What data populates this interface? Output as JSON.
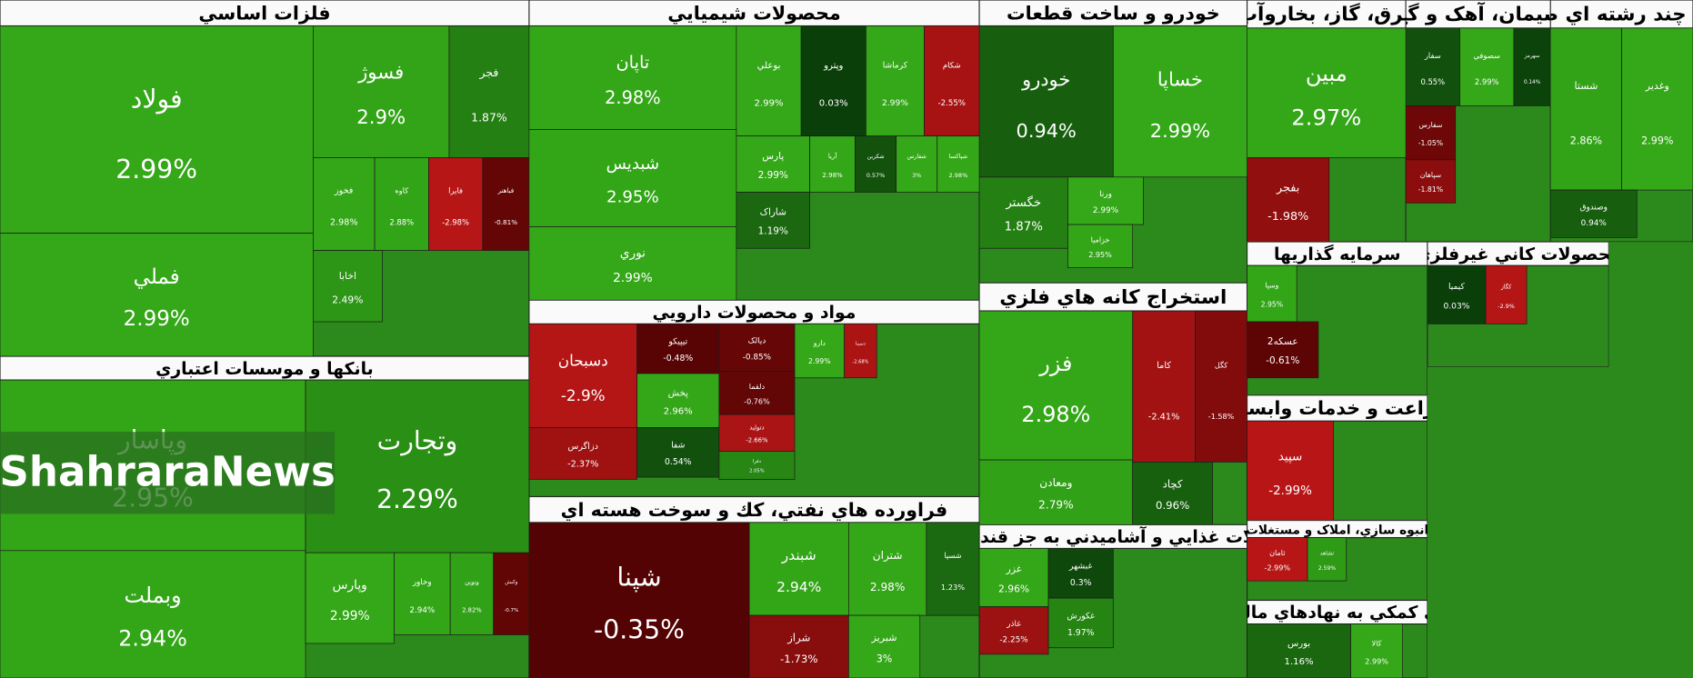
{
  "chart_data": {
    "type": "treemap",
    "watermark": "ShahraraNews",
    "groups": [
      {
        "name": "فلزات اساسي",
        "labels": [
          "فولاد",
          "فملي",
          "فسوژ",
          "فجر",
          "فخوز",
          "کاوه",
          "فايرا",
          "فباهنر",
          "اخابا"
        ],
        "values": [
          2.99,
          2.99,
          2.9,
          1.87,
          2.98,
          2.88,
          -2.98,
          -0.81,
          2.49
        ],
        "value_labels": [
          "2.99%",
          "2.99%",
          "2.9%",
          "1.87%",
          "2.98%",
          "2.88%",
          "-2.98%",
          "-0.81%",
          "2.49%"
        ]
      },
      {
        "name": "بانکها و موسسات اعتباري",
        "labels": [
          "وپاسار",
          "وبملت",
          "وتجارت",
          "وپارس",
          "وخاور",
          "ونوين",
          "وکبش"
        ],
        "values": [
          2.95,
          2.94,
          2.29,
          2.99,
          2.94,
          2.82,
          -0.7
        ],
        "value_labels": [
          "2.95%",
          "2.94%",
          "2.29%",
          "2.99%",
          "2.94%",
          "2.82%",
          "-0.7%"
        ]
      },
      {
        "name": "محصولات شيميايي",
        "labels": [
          "تاپان",
          "شبديس",
          "نوري",
          "بوعلي",
          "وپترو",
          "کرماشا",
          "شکام",
          "پارس",
          "آريا",
          "شکربن",
          "شفارس",
          "شپاکسا",
          "شاراک"
        ],
        "values": [
          2.98,
          2.95,
          2.99,
          2.99,
          0.03,
          2.99,
          -2.55,
          2.99,
          2.98,
          0.57,
          3,
          2.98,
          1.19
        ],
        "value_labels": [
          "2.98%",
          "2.95%",
          "2.99%",
          "2.99%",
          "0.03%",
          "2.99%",
          "-2.55%",
          "2.99%",
          "2.98%",
          "0.57%",
          "3%",
          "2.98%",
          "1.19%"
        ]
      },
      {
        "name": "مواد و محصولات دارويي",
        "labels": [
          "دسبحان",
          "دزاگرس",
          "تيپيکو",
          "ديالک",
          "پخش",
          "دلقما",
          "شفا",
          "دتوليد",
          "دفرا",
          "دارو",
          "دسينا"
        ],
        "values": [
          -2.9,
          -2.37,
          -0.48,
          -0.85,
          2.96,
          -0.76,
          0.54,
          -2.66,
          2.05,
          2.99,
          -2.68
        ],
        "value_labels": [
          "-2.9%",
          "-2.37%",
          "-0.48%",
          "-0.85%",
          "2.96%",
          "-0.76%",
          "0.54%",
          "-2.66%",
          "2.05%",
          "2.99%",
          "-2.68%"
        ]
      },
      {
        "name": "فراورده هاي نفتي، كك و سوخت هسته اي",
        "labels": [
          "شپنا",
          "شبندر",
          "شتران",
          "شسپا",
          "شراز",
          "شبريز"
        ],
        "values": [
          -0.35,
          2.94,
          2.98,
          1.23,
          -1.73,
          3
        ],
        "value_labels": [
          "-0.35%",
          "2.94%",
          "2.98%",
          "1.23%",
          "-1.73%",
          "3%"
        ]
      },
      {
        "name": "خودرو و ساخت قطعات",
        "labels": [
          "خودرو",
          "خساپا",
          "خگستر",
          "ورنا",
          "خزاميا"
        ],
        "values": [
          0.94,
          2.99,
          1.87,
          2.99,
          2.95
        ],
        "value_labels": [
          "0.94%",
          "2.99%",
          "1.87%",
          "2.99%",
          "2.95%"
        ]
      },
      {
        "name": "استخراج كانه هاي فلزي",
        "labels": [
          "فزر",
          "ومعادن",
          "کاما",
          "کگل",
          "کچاد"
        ],
        "values": [
          2.98,
          2.79,
          -2.41,
          -1.58,
          0.96
        ],
        "value_labels": [
          "2.98%",
          "2.79%",
          "-2.41%",
          "-1.58%",
          "0.96%"
        ]
      },
      {
        "name": "محصولات غذايي و آشاميدني به جز قند و شکر",
        "labels": [
          "غزر",
          "غاذر",
          "غبشهر",
          "غکورش"
        ],
        "values": [
          2.96,
          -2.25,
          0.3,
          1.97
        ],
        "value_labels": [
          "2.96%",
          "-2.25%",
          "0.3%",
          "1.97%"
        ]
      },
      {
        "name": "رضه برق، گاز، بخاروآب گرم",
        "labels": [
          "مبين",
          "بفجر"
        ],
        "values": [
          2.97,
          -1.98
        ],
        "value_labels": [
          "2.97%",
          "-1.98%"
        ]
      },
      {
        "name": "سيمان، آهک و گچ",
        "labels": [
          "سفار",
          "سصوفي",
          "سهرمز",
          "سفارس",
          "سپاهان"
        ],
        "values": [
          0.55,
          2.99,
          0.14,
          -1.05,
          -1.81
        ],
        "value_labels": [
          "0.55%",
          "2.99%",
          "0.14%",
          "-1.05%",
          "-1.81%"
        ]
      },
      {
        "name": "کتهاي چند رشته اي صنعتي",
        "labels": [
          "شستا",
          "وغدير",
          "وصندوق"
        ],
        "values": [
          2.86,
          2.99,
          0.94
        ],
        "value_labels": [
          "2.86%",
          "2.99%",
          "0.94%"
        ]
      },
      {
        "name": "سرمايه گذاريها",
        "labels": [
          "وسپا",
          "عسکه2"
        ],
        "values": [
          2.95,
          -0.61
        ],
        "value_labels": [
          "2.95%",
          "-0.61%"
        ]
      },
      {
        "name": "زراعت و خدمات وابسته",
        "labels": [
          "سپيد"
        ],
        "values": [
          -2.99
        ],
        "value_labels": [
          "-2.99%"
        ]
      },
      {
        "name": "انبوه سازي، املاک و مستغلات",
        "labels": [
          "ثامان",
          "ثشاهد"
        ],
        "values": [
          -2.99,
          2.59
        ],
        "value_labels": [
          "-2.99%",
          "2.59%"
        ]
      },
      {
        "name": "فعاليتهاي کمکي به نهادهاي مالي واسط",
        "labels": [
          "بورس",
          "کالا"
        ],
        "values": [
          1.16,
          2.99
        ],
        "value_labels": [
          "1.16%",
          "2.99%"
        ]
      },
      {
        "name": "محصولات كاني غيرفلزي",
        "labels": [
          "کيميا",
          "کگاز"
        ],
        "values": [
          0.03,
          -2.9
        ],
        "value_labels": [
          "0.03%",
          "-2.9%"
        ]
      }
    ]
  }
}
